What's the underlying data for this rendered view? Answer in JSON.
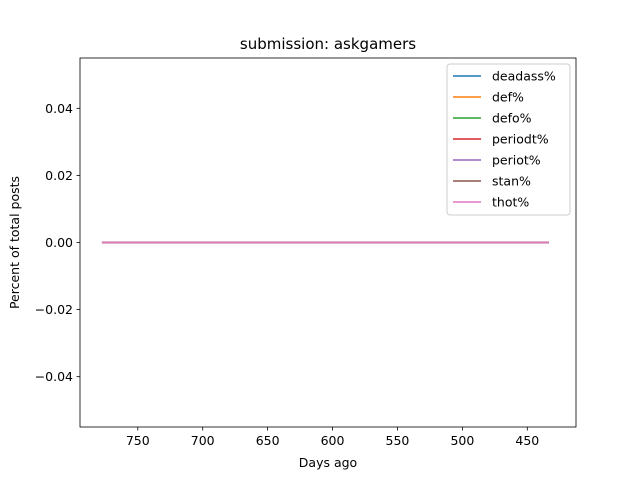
{
  "chart_data": {
    "type": "line",
    "title": "submission: askgamers",
    "xlabel": "Days ago",
    "ylabel": "Percent of total posts",
    "xlim": [
      794.5,
      412.5
    ],
    "x_inverted": true,
    "ylim": [
      -0.055,
      0.055
    ],
    "xticks": [
      750,
      700,
      650,
      600,
      550,
      500,
      450
    ],
    "yticks": [
      -0.04,
      -0.02,
      0.0,
      0.02,
      0.04
    ],
    "ytick_labels": [
      "−0.04",
      "−0.02",
      "0.00",
      "0.02",
      "0.04"
    ],
    "grid": false,
    "legend_position": "upper right",
    "x": [
      777,
      434
    ],
    "series": [
      {
        "name": "deadass%",
        "color": "#1f77b4",
        "values": [
          0,
          0
        ]
      },
      {
        "name": "def%",
        "color": "#ff7f0e",
        "values": [
          0,
          0
        ]
      },
      {
        "name": "defo%",
        "color": "#2ca02c",
        "values": [
          0,
          0
        ]
      },
      {
        "name": "periodt%",
        "color": "#d62728",
        "values": [
          0,
          0
        ]
      },
      {
        "name": "periot%",
        "color": "#9467bd",
        "values": [
          0,
          0
        ]
      },
      {
        "name": "stan%",
        "color": "#8c564b",
        "values": [
          0,
          0
        ]
      },
      {
        "name": "thot%",
        "color": "#e377c2",
        "values": [
          0,
          0
        ]
      }
    ]
  }
}
